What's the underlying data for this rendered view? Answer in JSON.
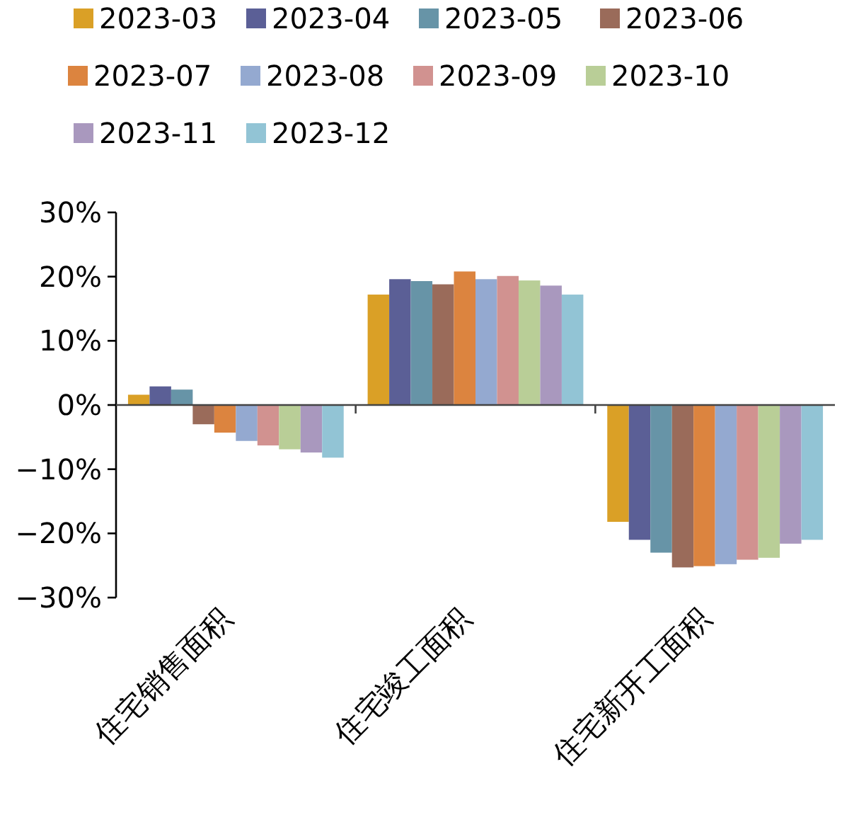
{
  "chart_data": {
    "type": "bar",
    "categories": [
      "住宅销售面积",
      "住宅竣工面积",
      "住宅新开工面积"
    ],
    "series": [
      {
        "name": "2023-03",
        "color": "#daa026",
        "values": [
          1.6,
          17.2,
          -18.2
        ]
      },
      {
        "name": "2023-04",
        "color": "#5b5f96",
        "values": [
          2.9,
          19.6,
          -21.0
        ]
      },
      {
        "name": "2023-05",
        "color": "#6794a7",
        "values": [
          2.4,
          19.3,
          -23.0
        ]
      },
      {
        "name": "2023-06",
        "color": "#9a6b5a",
        "values": [
          -3.0,
          18.8,
          -25.3
        ]
      },
      {
        "name": "2023-07",
        "color": "#dc843f",
        "values": [
          -4.3,
          20.8,
          -25.1
        ]
      },
      {
        "name": "2023-08",
        "color": "#94a9d0",
        "values": [
          -5.6,
          19.6,
          -24.8
        ]
      },
      {
        "name": "2023-09",
        "color": "#d19290",
        "values": [
          -6.3,
          20.1,
          -24.1
        ]
      },
      {
        "name": "2023-10",
        "color": "#b9ce97",
        "values": [
          -6.9,
          19.4,
          -23.8
        ]
      },
      {
        "name": "2023-11",
        "color": "#a998be",
        "values": [
          -7.4,
          18.6,
          -21.6
        ]
      },
      {
        "name": "2023-12",
        "color": "#92c4d5",
        "values": [
          -8.2,
          17.2,
          -21.0
        ]
      }
    ],
    "ylim": [
      -30,
      30
    ],
    "yticks": [
      {
        "value": -30,
        "label": "−30%"
      },
      {
        "value": -20,
        "label": "−20%"
      },
      {
        "value": -10,
        "label": "−10%"
      },
      {
        "value": 0,
        "label": "0%"
      },
      {
        "value": 10,
        "label": "10%"
      },
      {
        "value": 20,
        "label": "20%"
      },
      {
        "value": 30,
        "label": "30%"
      }
    ],
    "legend": "top"
  }
}
